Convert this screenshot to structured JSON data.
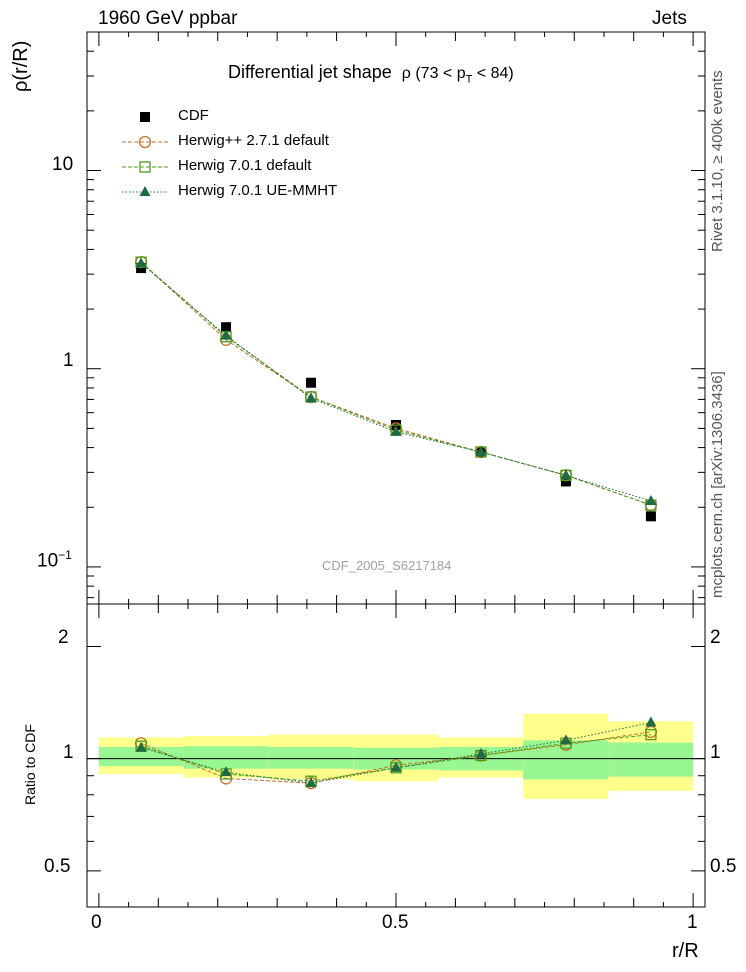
{
  "header": {
    "left": "1960 GeV ppbar",
    "right": "Jets",
    "side_top": "Rivet 3.1.10, ≥ 400k events",
    "side_bottom": "mcplots.cern.ch [arXiv:1306.3436]"
  },
  "chart_data": [
    {
      "type": "scatter",
      "panel": "main",
      "title": "Differential jet shape",
      "title_rho": "ρ (73 < p",
      "title_sub": "T",
      "title_tail": " < 84)",
      "ylabel": "ρ(r/R)",
      "yscale": "log",
      "ylim": [
        0.065,
        50
      ],
      "xlim": [
        -0.02,
        1.02
      ],
      "ytick_labels": {
        "ten": "10",
        "one": "1",
        "tenth_base": "10",
        "tenth_exp": "−1"
      },
      "watermark": "CDF_2005_S6217184",
      "legend": {
        "position": "top-left",
        "entries": [
          "CDF",
          "Herwig++ 2.7.1 default",
          "Herwig 7.0.1 default",
          "Herwig 7.0.1 UE-MMHT"
        ]
      },
      "x": [
        0.071,
        0.214,
        0.357,
        0.5,
        0.643,
        0.786,
        0.929
      ],
      "series": [
        {
          "name": "CDF",
          "values": [
            3.22,
            1.62,
            0.85,
            0.52,
            0.38,
            0.27,
            0.18
          ],
          "color": "#000000",
          "marker": "square-filled"
        },
        {
          "name": "Herwig++ 2.7.1 default",
          "values": [
            3.45,
            1.4,
            0.72,
            0.5,
            0.38,
            0.29,
            0.205
          ],
          "color": "#c87028",
          "marker": "circle-open",
          "line": "dashed"
        },
        {
          "name": "Herwig 7.0.1 default",
          "values": [
            3.45,
            1.45,
            0.72,
            0.49,
            0.38,
            0.29,
            0.205
          ],
          "color": "#4a9e1c",
          "marker": "square-open",
          "line": "dashed"
        },
        {
          "name": "Herwig 7.0.1 UE-MMHT",
          "values": [
            3.4,
            1.47,
            0.71,
            0.48,
            0.38,
            0.29,
            0.215
          ],
          "color": "#1f6b43",
          "marker": "triangle-filled",
          "line": "dotted"
        }
      ]
    },
    {
      "type": "scatter",
      "panel": "ratio",
      "ylabel": "Ratio to CDF",
      "xlabel": "r/R",
      "yscale": "log",
      "ylim": [
        0.4,
        2.6
      ],
      "xlim": [
        -0.02,
        1.02
      ],
      "yticks": [
        0.5,
        1,
        2
      ],
      "ytick_labels": [
        "0.5",
        "1",
        "2"
      ],
      "xticks": [
        0,
        0.5,
        1
      ],
      "xtick_labels": [
        "0",
        "0.5",
        "1"
      ],
      "band_edges": [
        0,
        0.143,
        0.286,
        0.429,
        0.571,
        0.714,
        0.857,
        1.0
      ],
      "band_inner": [
        [
          0.955,
          1.075
        ],
        [
          0.94,
          1.08
        ],
        [
          0.94,
          1.075
        ],
        [
          0.935,
          1.07
        ],
        [
          0.93,
          1.075
        ],
        [
          0.88,
          1.12
        ],
        [
          0.895,
          1.105
        ]
      ],
      "band_outer": [
        [
          0.91,
          1.14
        ],
        [
          0.89,
          1.15
        ],
        [
          0.88,
          1.16
        ],
        [
          0.87,
          1.16
        ],
        [
          0.89,
          1.14
        ],
        [
          0.78,
          1.32
        ],
        [
          0.82,
          1.26
        ]
      ],
      "band_colors": {
        "inner": "#99f793",
        "outer": "#ffff8c"
      },
      "x": [
        0.071,
        0.214,
        0.357,
        0.5,
        0.643,
        0.786,
        0.929
      ],
      "series": [
        {
          "name": "Herwig++ 2.7.1 default",
          "values": [
            1.1,
            0.885,
            0.86,
            0.96,
            1.02,
            1.09,
            1.18
          ],
          "color": "#c87028",
          "marker": "circle-open",
          "line": "dashed"
        },
        {
          "name": "Herwig 7.0.1 default",
          "values": [
            1.08,
            0.91,
            0.87,
            0.945,
            1.02,
            1.1,
            1.16
          ],
          "color": "#4a9e1c",
          "marker": "square-open",
          "line": "dashed"
        },
        {
          "name": "Herwig 7.0.1 UE-MMHT",
          "values": [
            1.07,
            0.92,
            0.86,
            0.945,
            1.03,
            1.12,
            1.25
          ],
          "color": "#1f6b43",
          "marker": "triangle-filled",
          "line": "dotted"
        }
      ]
    }
  ]
}
